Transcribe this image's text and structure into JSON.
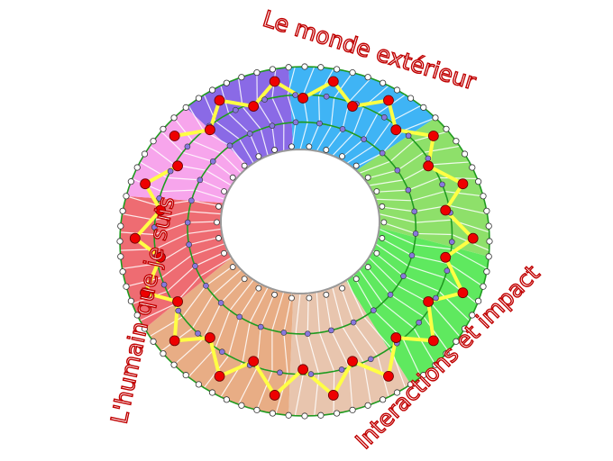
{
  "labels": {
    "outer_world": "Le monde extérieur",
    "human_self": "L'humain que je suis",
    "interactions": "Interactions et impact"
  },
  "colors": {
    "label_outline": "#c00000",
    "ring_line": "#1f9a1f",
    "path": "#ffff44",
    "path_node": "#ee0000",
    "mid_node": "#8877dd",
    "edge_node": "#ffffff",
    "sectors": [
      "#8a6ae6",
      "#3fb4f5",
      "#8ee06a",
      "#5fe95f",
      "#e8c5ae",
      "#e8ad85",
      "#ee6c72",
      "#f7a5ec"
    ]
  }
}
